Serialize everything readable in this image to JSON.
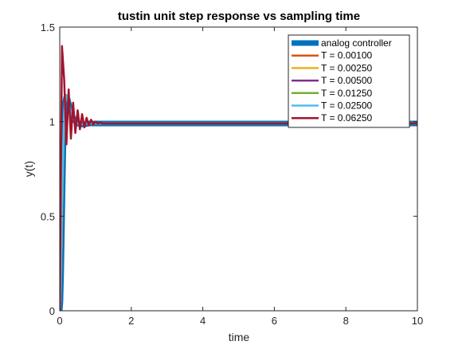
{
  "chart_data": {
    "type": "line",
    "title": "tustin unit step response vs sampling time",
    "xlabel": "time",
    "ylabel": "y(t)",
    "xlim": [
      0,
      10
    ],
    "ylim": [
      0,
      1.5
    ],
    "xticks": [
      0,
      2,
      4,
      6,
      8,
      10
    ],
    "yticks": [
      0,
      0.5,
      1,
      1.5
    ],
    "legend_position": "top-right",
    "grid": false,
    "series": [
      {
        "name": "analog controller",
        "color": "#0072bd",
        "x": [
          0,
          0.02,
          0.04,
          0.06,
          0.08,
          0.1,
          0.12,
          0.15,
          0.18,
          0.22,
          0.26,
          0.3,
          0.35,
          0.4,
          0.45,
          0.5,
          0.6,
          0.7,
          0.8,
          0.9,
          1,
          1.2,
          1.5,
          2,
          3,
          5,
          7,
          10
        ],
        "y": [
          0,
          0.05,
          0.2,
          0.42,
          0.65,
          0.85,
          1.0,
          1.1,
          1.13,
          1.12,
          1.09,
          1.06,
          1.03,
          1.01,
          1.0,
          0.99,
          0.985,
          0.985,
          0.99,
          0.99,
          0.99,
          0.99,
          0.99,
          0.99,
          0.99,
          0.99,
          0.99,
          0.99
        ]
      },
      {
        "name": "T = 0.00100",
        "color": "#d95319",
        "x": [
          0,
          0.02,
          0.04,
          0.06,
          0.08,
          0.1,
          0.12,
          0.15,
          0.18,
          0.22,
          0.26,
          0.3,
          0.35,
          0.4,
          0.45,
          0.5,
          0.6,
          0.7,
          0.8,
          0.9,
          1,
          1.2,
          1.5,
          2,
          3,
          5,
          7,
          10
        ],
        "y": [
          0,
          0.05,
          0.2,
          0.42,
          0.65,
          0.85,
          1.0,
          1.1,
          1.13,
          1.12,
          1.09,
          1.06,
          1.03,
          1.01,
          1.0,
          0.99,
          0.985,
          0.985,
          0.99,
          0.99,
          0.99,
          0.99,
          0.99,
          0.99,
          0.99,
          0.99,
          0.99,
          0.99
        ]
      },
      {
        "name": "T = 0.00250",
        "color": "#edb120",
        "x": [
          0,
          0.02,
          0.04,
          0.06,
          0.08,
          0.1,
          0.12,
          0.15,
          0.18,
          0.22,
          0.26,
          0.3,
          0.35,
          0.4,
          0.45,
          0.5,
          0.6,
          0.7,
          0.8,
          0.9,
          1,
          1.2,
          1.5,
          2,
          3,
          5,
          7,
          10
        ],
        "y": [
          0,
          0.05,
          0.2,
          0.42,
          0.65,
          0.85,
          1.0,
          1.1,
          1.13,
          1.12,
          1.09,
          1.06,
          1.03,
          1.01,
          1.0,
          0.99,
          0.985,
          0.985,
          0.99,
          0.99,
          0.99,
          0.99,
          0.99,
          0.99,
          0.99,
          0.99,
          0.99,
          0.99
        ]
      },
      {
        "name": "T = 0.00500",
        "color": "#7e2f8e",
        "x": [
          0,
          0.02,
          0.04,
          0.06,
          0.08,
          0.1,
          0.12,
          0.15,
          0.18,
          0.22,
          0.26,
          0.3,
          0.35,
          0.4,
          0.45,
          0.5,
          0.6,
          0.7,
          0.8,
          0.9,
          1,
          1.2,
          1.5,
          2,
          3,
          5,
          7,
          10
        ],
        "y": [
          0,
          0.05,
          0.2,
          0.42,
          0.65,
          0.85,
          1.0,
          1.1,
          1.13,
          1.12,
          1.09,
          1.06,
          1.03,
          1.01,
          1.0,
          0.99,
          0.985,
          0.985,
          0.99,
          0.99,
          0.99,
          0.99,
          0.99,
          0.99,
          0.99,
          0.99,
          0.99,
          0.99
        ]
      },
      {
        "name": "T = 0.01250",
        "color": "#77ac30",
        "x": [
          0,
          0.025,
          0.05,
          0.075,
          0.1,
          0.125,
          0.15,
          0.2,
          0.25,
          0.3,
          0.35,
          0.4,
          0.5,
          0.6,
          0.7,
          0.8,
          1,
          1.5,
          2,
          3,
          5,
          7,
          10
        ],
        "y": [
          0,
          0.1,
          0.35,
          0.62,
          0.85,
          1.02,
          1.1,
          1.13,
          1.1,
          1.06,
          1.03,
          1.01,
          0.99,
          0.985,
          0.99,
          0.99,
          0.99,
          0.99,
          0.99,
          0.99,
          0.99,
          0.99,
          0.99
        ]
      },
      {
        "name": "T = 0.02500",
        "color": "#4dbeee",
        "x": [
          0,
          0.025,
          0.05,
          0.075,
          0.1,
          0.125,
          0.15,
          0.2,
          0.25,
          0.3,
          0.35,
          0.4,
          0.5,
          0.6,
          0.7,
          0.8,
          1,
          1.5,
          2,
          3,
          5,
          7,
          10
        ],
        "y": [
          0,
          0.12,
          0.4,
          0.68,
          0.9,
          1.05,
          1.12,
          1.14,
          1.1,
          1.06,
          1.03,
          1.01,
          0.99,
          0.985,
          0.99,
          0.99,
          0.99,
          0.99,
          0.99,
          0.99,
          0.99,
          0.99,
          0.99
        ]
      },
      {
        "name": "T = 0.06250",
        "color": "#a2142f",
        "x": [
          0,
          0.0625,
          0.125,
          0.1875,
          0.25,
          0.3125,
          0.375,
          0.4375,
          0.5,
          0.5625,
          0.625,
          0.6875,
          0.75,
          0.8125,
          0.875,
          0.9375,
          1,
          1.0625,
          1.125,
          1.1875,
          1.25,
          1.5,
          2,
          3,
          5,
          7,
          10
        ],
        "y": [
          0,
          1.4,
          1.22,
          0.88,
          1.17,
          0.91,
          1.1,
          0.94,
          1.06,
          0.96,
          1.04,
          0.97,
          1.02,
          0.98,
          1.01,
          0.985,
          1.0,
          0.99,
          0.995,
          0.99,
          0.99,
          0.99,
          0.99,
          0.99,
          0.99,
          0.99,
          0.99
        ]
      }
    ]
  }
}
